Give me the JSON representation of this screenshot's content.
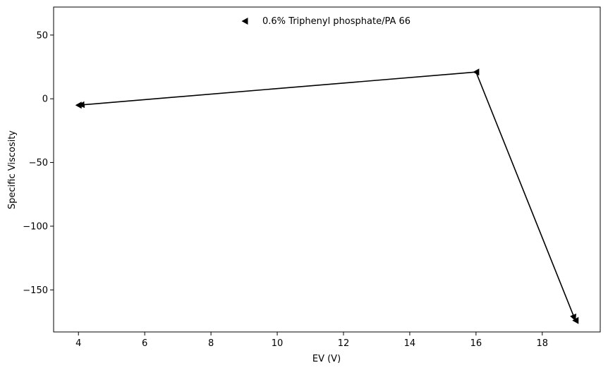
{
  "chart_data": {
    "type": "line",
    "title": "",
    "xlabel": "EV (V)",
    "ylabel": "Specific Viscosity",
    "xlim": [
      3.25,
      19.75
    ],
    "ylim": [
      -183,
      72
    ],
    "xticks": [
      4,
      6,
      8,
      10,
      12,
      14,
      16,
      18
    ],
    "yticks": [
      50,
      0,
      -50,
      -100,
      -150
    ],
    "ytick_labels": [
      "50",
      "0",
      "−50",
      "−100",
      "−150"
    ],
    "grid": false,
    "legend_position": "top-center",
    "series": [
      {
        "name": "0.6% Triphenyl phosphate/PA 66",
        "color": "#000000",
        "marker": "triangle-left",
        "points": [
          {
            "x": 4,
            "y": -5
          },
          {
            "x": 16,
            "y": 21
          },
          {
            "x": 19,
            "y": -174
          }
        ]
      }
    ]
  }
}
